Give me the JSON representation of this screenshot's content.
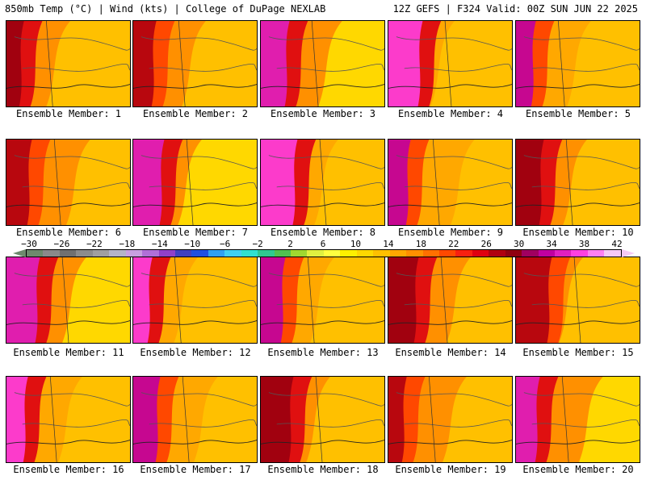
{
  "header": {
    "left": "850mb Temp (°C) | Wind (kts) | College of DuPage NEXLAB",
    "right": "12Z GEFS | F324 Valid: 00Z SUN JUN 22 2025"
  },
  "members": [
    {
      "label": "Ensemble Member: 1"
    },
    {
      "label": "Ensemble Member: 2"
    },
    {
      "label": "Ensemble Member: 3"
    },
    {
      "label": "Ensemble Member: 4"
    },
    {
      "label": "Ensemble Member: 5"
    },
    {
      "label": "Ensemble Member: 6"
    },
    {
      "label": "Ensemble Member: 7"
    },
    {
      "label": "Ensemble Member: 8"
    },
    {
      "label": "Ensemble Member: 9"
    },
    {
      "label": "Ensemble Member: 10"
    },
    {
      "label": "Ensemble Member: 11"
    },
    {
      "label": "Ensemble Member: 12"
    },
    {
      "label": "Ensemble Member: 13"
    },
    {
      "label": "Ensemble Member: 14"
    },
    {
      "label": "Ensemble Member: 15"
    },
    {
      "label": "Ensemble Member: 16"
    },
    {
      "label": "Ensemble Member: 17"
    },
    {
      "label": "Ensemble Member: 18"
    },
    {
      "label": "Ensemble Member: 19"
    },
    {
      "label": "Ensemble Member: 20"
    }
  ],
  "colorbar": {
    "tick_labels": [
      "−30",
      "−26",
      "−22",
      "−18",
      "−14",
      "−10",
      "−6",
      "−2",
      "2",
      "6",
      "10",
      "14",
      "18",
      "22",
      "26",
      "30",
      "34",
      "38",
      "42"
    ],
    "colors": [
      "#6d8a6d",
      "#8a8a8a",
      "#707070",
      "#8c8c8c",
      "#a0a0a0",
      "#b4b4c8",
      "#c8a0e0",
      "#b070d8",
      "#9040c8",
      "#4040c0",
      "#2050e0",
      "#30a0f0",
      "#40d0f0",
      "#30e0d0",
      "#30c890",
      "#50c050",
      "#a0d830",
      "#e0f040",
      "#ffff40",
      "#fff000",
      "#ffd800",
      "#ffc000",
      "#ffa800",
      "#ff9000",
      "#ff7000",
      "#ff4800",
      "#f82010",
      "#e00010",
      "#b00010",
      "#900010",
      "#a00060",
      "#c000a0",
      "#e020c0",
      "#ff40e0",
      "#ff80f0",
      "#f6c9f6"
    ]
  }
}
